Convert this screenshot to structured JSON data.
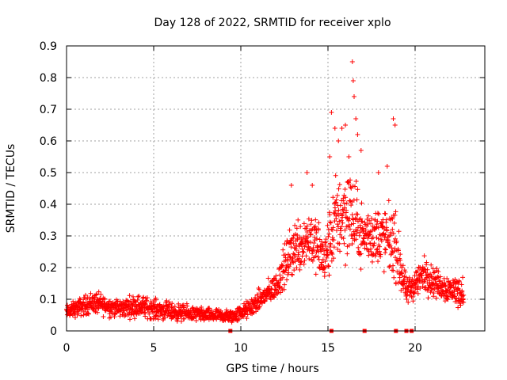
{
  "chart_data": {
    "type": "scatter",
    "title": "Day 128 of 2022, SRMTID for receiver xplo",
    "xlabel": "GPS time / hours",
    "ylabel": "SRMTID / TECUs",
    "xlim": [
      0,
      24
    ],
    "ylim": [
      0,
      0.9
    ],
    "x_ticks": [
      "0",
      "5",
      "10",
      "15",
      "20"
    ],
    "y_ticks": [
      "0",
      "0.1",
      "0.2",
      "0.3",
      "0.4",
      "0.5",
      "0.6",
      "0.7",
      "0.8",
      "0.9"
    ],
    "grid": true,
    "marker": "+",
    "series": [
      {
        "name": "SRMTID",
        "color": "#ff0000",
        "envelope": [
          {
            "x": 0.0,
            "base": 0.06,
            "spread": 0.03
          },
          {
            "x": 1.5,
            "base": 0.09,
            "spread": 0.05
          },
          {
            "x": 3.0,
            "base": 0.07,
            "spread": 0.04
          },
          {
            "x": 4.0,
            "base": 0.08,
            "spread": 0.05
          },
          {
            "x": 6.0,
            "base": 0.06,
            "spread": 0.04
          },
          {
            "x": 8.0,
            "base": 0.05,
            "spread": 0.03
          },
          {
            "x": 9.5,
            "base": 0.045,
            "spread": 0.03
          },
          {
            "x": 10.5,
            "base": 0.07,
            "spread": 0.04
          },
          {
            "x": 12.0,
            "base": 0.14,
            "spread": 0.06
          },
          {
            "x": 13.0,
            "base": 0.26,
            "spread": 0.13
          },
          {
            "x": 14.0,
            "base": 0.3,
            "spread": 0.13
          },
          {
            "x": 14.8,
            "base": 0.22,
            "spread": 0.12
          },
          {
            "x": 15.5,
            "base": 0.36,
            "spread": 0.2
          },
          {
            "x": 16.2,
            "base": 0.38,
            "spread": 0.22
          },
          {
            "x": 17.0,
            "base": 0.3,
            "spread": 0.12
          },
          {
            "x": 18.0,
            "base": 0.3,
            "spread": 0.14
          },
          {
            "x": 18.8,
            "base": 0.28,
            "spread": 0.16
          },
          {
            "x": 19.5,
            "base": 0.12,
            "spread": 0.06
          },
          {
            "x": 20.5,
            "base": 0.18,
            "spread": 0.08
          },
          {
            "x": 21.5,
            "base": 0.14,
            "spread": 0.06
          },
          {
            "x": 22.8,
            "base": 0.12,
            "spread": 0.07
          }
        ],
        "peaks": [
          {
            "x": 15.2,
            "y": 0.69
          },
          {
            "x": 15.4,
            "y": 0.64
          },
          {
            "x": 15.6,
            "y": 0.6
          },
          {
            "x": 15.8,
            "y": 0.64
          },
          {
            "x": 16.0,
            "y": 0.65
          },
          {
            "x": 16.2,
            "y": 0.55
          },
          {
            "x": 16.4,
            "y": 0.85
          },
          {
            "x": 16.45,
            "y": 0.79
          },
          {
            "x": 16.5,
            "y": 0.74
          },
          {
            "x": 16.6,
            "y": 0.67
          },
          {
            "x": 16.7,
            "y": 0.62
          },
          {
            "x": 13.8,
            "y": 0.5
          },
          {
            "x": 14.1,
            "y": 0.46
          },
          {
            "x": 17.9,
            "y": 0.5
          },
          {
            "x": 18.4,
            "y": 0.52
          },
          {
            "x": 18.75,
            "y": 0.67
          },
          {
            "x": 18.85,
            "y": 0.65
          },
          {
            "x": 12.9,
            "y": 0.46
          },
          {
            "x": 15.1,
            "y": 0.55
          },
          {
            "x": 16.9,
            "y": 0.57
          }
        ],
        "zeros_x": [
          15.2,
          17.1,
          18.9,
          19.5,
          19.8,
          9.4
        ]
      }
    ]
  }
}
